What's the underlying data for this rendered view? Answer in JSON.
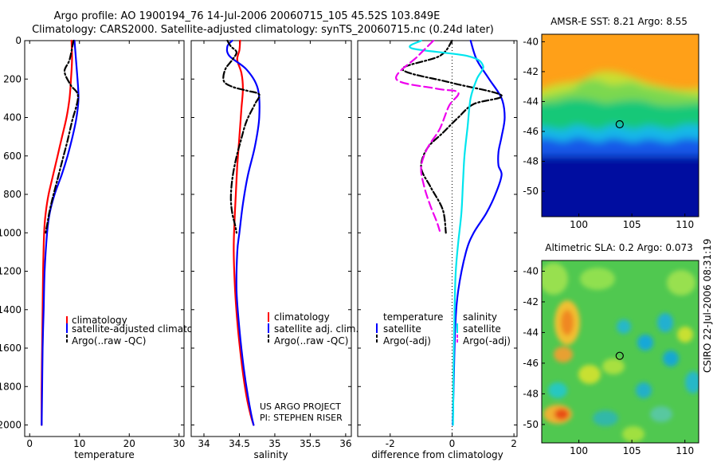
{
  "header": {
    "title_line1": "Argo profile: AO 1900194_76 14-Jul-2006 20060715_105 45.52S 103.849E",
    "title_line2": "Climatology: CARS2000. Satellite-adjusted climatology: synTS_20060715.nc (0.24d later)"
  },
  "side_label": "CSIRO 22-Jul-2006 08:31:19",
  "credit": {
    "line1": "US ARGO PROJECT",
    "line2": "PI: STEPHEN RISER"
  },
  "colors": {
    "climatology": "#ff0000",
    "satellite": "#0000ff",
    "argo": "#000000",
    "sat_diff_s": "#00e5ee",
    "argo_diff_s": "#ee00ee"
  },
  "chart_data": [
    {
      "type": "line",
      "xlabel": "temperature",
      "xlim": [
        -1,
        31
      ],
      "ylim": [
        0,
        2060
      ],
      "xticks": [
        "0",
        "10",
        "20",
        "30"
      ],
      "yticks": [
        "0",
        "200",
        "400",
        "600",
        "800",
        "1000",
        "1200",
        "1400",
        "1600",
        "1800",
        "2000"
      ],
      "legend": [
        "climatology",
        "satellite-adjusted climatology",
        "Argo(..raw -QC)"
      ],
      "series": [
        {
          "name": "climatology",
          "color": "#ff0000",
          "dash": "",
          "x": [
            8.4,
            8.5,
            8.3,
            8.0,
            7.4,
            6.5,
            5.6,
            4.7,
            3.8,
            3.2,
            2.9,
            2.7,
            2.6,
            2.5,
            2.4,
            2.4
          ],
          "y": [
            0,
            100,
            200,
            300,
            400,
            500,
            600,
            700,
            800,
            900,
            1000,
            1200,
            1400,
            1600,
            1800,
            2000
          ]
        },
        {
          "name": "satellite-adjusted climatology",
          "color": "#0000ff",
          "dash": "",
          "x": [
            9.0,
            9.3,
            9.6,
            9.8,
            9.4,
            8.6,
            7.6,
            6.4,
            5.0,
            4.0,
            3.5,
            3.0,
            2.8,
            2.6,
            2.5,
            2.4
          ],
          "y": [
            0,
            100,
            200,
            300,
            400,
            500,
            600,
            700,
            800,
            900,
            1000,
            1200,
            1400,
            1600,
            1800,
            2000
          ]
        },
        {
          "name": "Argo(..raw -QC)",
          "color": "#000000",
          "dash": "8,3,2,3",
          "x": [
            8.8,
            8.0,
            7.0,
            8.2,
            9.7,
            8.5,
            7.6,
            6.6,
            5.6,
            4.6,
            3.9,
            3.5,
            3.2
          ],
          "y": [
            0,
            100,
            160,
            230,
            290,
            420,
            520,
            620,
            720,
            820,
            900,
            960,
            1000
          ]
        }
      ]
    },
    {
      "type": "line",
      "xlabel": "salinity",
      "xlim": [
        33.82,
        36.08
      ],
      "ylim": [
        0,
        2060
      ],
      "xticks": [
        "34",
        "34.5",
        "35",
        "35.5",
        "36"
      ],
      "legend": [
        "climatology",
        "satellite adj. clim.",
        "Argo(..raw -QC)"
      ],
      "series": [
        {
          "name": "climatology",
          "color": "#ff0000",
          "dash": "",
          "x": [
            34.51,
            34.5,
            34.47,
            34.53,
            34.55,
            34.53,
            34.5,
            34.47,
            34.45,
            34.43,
            34.42,
            34.44,
            34.48,
            34.54,
            34.6,
            34.66,
            34.7
          ],
          "y": [
            0,
            50,
            100,
            170,
            250,
            350,
            500,
            650,
            800,
            950,
            1100,
            1300,
            1500,
            1700,
            1850,
            1950,
            2000
          ]
        },
        {
          "name": "satellite adj. clim.",
          "color": "#0000ff",
          "dash": "",
          "x": [
            34.4,
            34.33,
            34.36,
            34.6,
            34.76,
            34.78,
            34.72,
            34.62,
            34.55,
            34.5,
            34.47,
            34.46,
            34.5,
            34.56,
            34.62,
            34.67,
            34.7
          ],
          "y": [
            0,
            30,
            80,
            150,
            250,
            400,
            550,
            700,
            850,
            1000,
            1100,
            1300,
            1500,
            1700,
            1850,
            1950,
            2000
          ]
        },
        {
          "name": "Argo(..raw -QC)",
          "color": "#000000",
          "dash": "8,3,2,3",
          "x": [
            34.33,
            34.38,
            34.46,
            34.4,
            34.3,
            34.28,
            34.4,
            34.6,
            34.78,
            34.72,
            34.6,
            34.52,
            34.45,
            34.4,
            34.38,
            34.4,
            34.44,
            34.46
          ],
          "y": [
            0,
            30,
            60,
            100,
            150,
            210,
            240,
            260,
            280,
            330,
            420,
            520,
            620,
            720,
            820,
            900,
            960,
            1000
          ]
        }
      ]
    },
    {
      "type": "line",
      "xlabel": "difference from climatology",
      "xlim": [
        -3.05,
        2.1
      ],
      "ylim": [
        0,
        2060
      ],
      "xticks": [
        "-2",
        "0",
        "2"
      ],
      "legend_left": {
        "heading": "temperature",
        "items": [
          "satellite",
          "Argo(-adj)"
        ]
      },
      "legend_right": {
        "heading": "salinity",
        "items": [
          "satellite",
          "Argo(-adj)"
        ]
      },
      "series": [
        {
          "name": "satellite",
          "group": "temperature",
          "color": "#0000ff",
          "dash": "",
          "x": [
            0.6,
            0.8,
            1.2,
            1.6,
            1.7,
            1.6,
            1.5,
            1.5,
            1.6,
            1.4,
            1.1,
            0.7,
            0.45,
            0.2,
            0.1,
            0.05,
            0.02
          ],
          "y": [
            0,
            100,
            200,
            300,
            400,
            500,
            580,
            650,
            700,
            800,
            900,
            1000,
            1100,
            1300,
            1500,
            1800,
            2000
          ]
        },
        {
          "name": "Argo(-adj)",
          "group": "temperature",
          "color": "#000000",
          "dash": "8,3,2,3",
          "x": [
            0.0,
            -0.4,
            -1.6,
            0.0,
            1.6,
            0.7,
            0.2,
            -0.3,
            -0.8,
            -1.0,
            -0.7,
            -0.3,
            -0.2
          ],
          "y": [
            0,
            80,
            150,
            220,
            285,
            330,
            400,
            480,
            560,
            660,
            760,
            880,
            1000
          ]
        },
        {
          "name": "satellite",
          "group": "salinity",
          "color": "#00e5ee",
          "dash": "",
          "x": [
            -1.0,
            -1.3,
            0.5,
            1.0,
            0.8,
            0.6,
            0.5,
            0.4,
            0.35,
            0.3,
            0.2,
            0.12,
            0.08,
            0.05,
            0.03
          ],
          "y": [
            0,
            40,
            80,
            130,
            200,
            300,
            450,
            600,
            750,
            900,
            1050,
            1200,
            1400,
            1700,
            2000
          ]
        },
        {
          "name": "Argo(-adj)",
          "group": "salinity",
          "color": "#ee00ee",
          "dash": "10,5",
          "x": [
            -0.6,
            -1.1,
            -1.8,
            -0.5,
            0.2,
            -0.1,
            -0.4,
            -0.8,
            -1.0,
            -0.9,
            -0.7,
            -0.5,
            -0.4
          ],
          "y": [
            0,
            80,
            200,
            250,
            270,
            340,
            460,
            560,
            660,
            760,
            860,
            940,
            990
          ]
        }
      ]
    },
    {
      "type": "heatmap",
      "title": "AMSR-E SST: 8.21 Argo: 8.55",
      "xlim": [
        96.5,
        111.3
      ],
      "ylim": [
        -51.7,
        -39.5
      ],
      "xticks": [
        "100",
        "105",
        "110"
      ],
      "yticks": [
        "-40",
        "-42",
        "-44",
        "-46",
        "-48",
        "-50"
      ],
      "marker": {
        "lon": 103.849,
        "lat": -45.52
      }
    },
    {
      "type": "heatmap",
      "title": "Altimetric SLA: 0.2 Argo: 0.073",
      "xlim": [
        96.5,
        111.3
      ],
      "ylim": [
        -51.2,
        -39.3
      ],
      "xticks": [
        "100",
        "105",
        "110"
      ],
      "yticks": [
        "-40",
        "-42",
        "-44",
        "-46",
        "-48",
        "-50"
      ],
      "marker": {
        "lon": 103.849,
        "lat": -45.52
      }
    }
  ]
}
